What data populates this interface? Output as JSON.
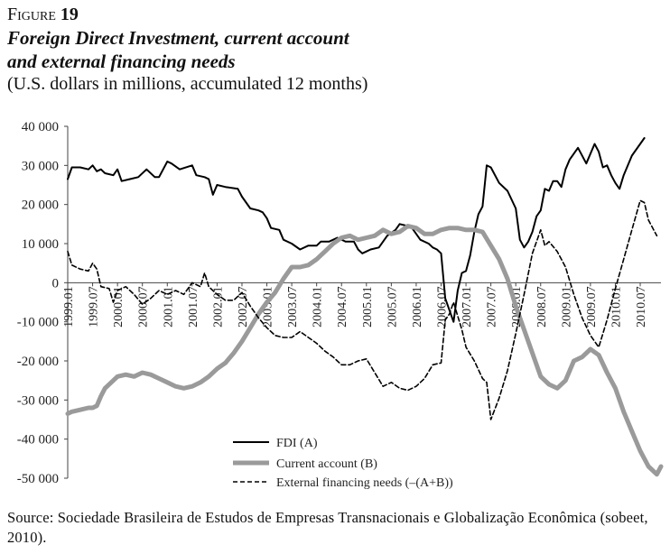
{
  "header": {
    "figure_word": "Figure",
    "figure_number": "19",
    "title_line1": "Foreign Direct Investment, current account",
    "title_line2": "and external financing needs",
    "subtitle": "(U.S. dollars in millions, accumulated 12 months)"
  },
  "source": {
    "text": "Source: Sociedade Brasileira de Estudos de Empresas Transnacionais e Globalização Econômica (sobeet, 2010)."
  },
  "chart_data": {
    "type": "line",
    "title": "Foreign Direct Investment, current account and external financing needs",
    "ylim": [
      -50000,
      40000
    ],
    "y_ticks": [
      40000,
      30000,
      20000,
      10000,
      0,
      -10000,
      -20000,
      -30000,
      -40000,
      -50000
    ],
    "y_tick_labels": [
      "40 000",
      "30 000",
      "20 000",
      "10 000",
      "0",
      "-10 000",
      "-20 000",
      "-30 000",
      "-40 000",
      "-50 000"
    ],
    "x_range": [
      "1999.01",
      "2010.12"
    ],
    "x_tick_labels": [
      "1999.01",
      "1999.07",
      "2000.01",
      "2000.07",
      "2001.01",
      "2001.07",
      "2002.01",
      "2002.07",
      "2003.01",
      "2003.07",
      "2004.01",
      "2004.07",
      "2005.01",
      "2005.07",
      "2006.01",
      "2006.07",
      "2007.01",
      "2007.07",
      "2008.01",
      "2008.07",
      "2009.01",
      "2009.07",
      "2010.01",
      "2010.07"
    ],
    "grid": false,
    "legend_position": "bottom-center",
    "series": [
      {
        "name": "FDI (A)",
        "color": "#000000",
        "style": "solid",
        "points": [
          [
            "1999.01",
            26500
          ],
          [
            "1999.02",
            29500
          ],
          [
            "1999.04",
            29500
          ],
          [
            "1999.06",
            29000
          ],
          [
            "1999.07",
            30000
          ],
          [
            "1999.08",
            28500
          ],
          [
            "1999.09",
            29000
          ],
          [
            "1999.10",
            28000
          ],
          [
            "1999.12",
            27500
          ],
          [
            "2000.01",
            29000
          ],
          [
            "2000.02",
            26000
          ],
          [
            "2000.04",
            26500
          ],
          [
            "2000.06",
            27000
          ],
          [
            "2000.08",
            29000
          ],
          [
            "2000.10",
            27000
          ],
          [
            "2000.11",
            27000
          ],
          [
            "2001.01",
            31000
          ],
          [
            "2001.02",
            30500
          ],
          [
            "2001.04",
            29000
          ],
          [
            "2001.07",
            30000
          ],
          [
            "2001.08",
            27500
          ],
          [
            "2001.10",
            27000
          ],
          [
            "2001.11",
            26500
          ],
          [
            "2001.12",
            22500
          ],
          [
            "2002.01",
            25000
          ],
          [
            "2002.03",
            24500
          ],
          [
            "2002.06",
            24000
          ],
          [
            "2002.07",
            22000
          ],
          [
            "2002.09",
            19000
          ],
          [
            "2002.11",
            18500
          ],
          [
            "2002.12",
            18000
          ],
          [
            "2003.01",
            16500
          ],
          [
            "2003.02",
            14000
          ],
          [
            "2003.04",
            13500
          ],
          [
            "2003.05",
            11000
          ],
          [
            "2003.07",
            10000
          ],
          [
            "2003.09",
            8500
          ],
          [
            "2003.11",
            9500
          ],
          [
            "2004.01",
            9500
          ],
          [
            "2004.02",
            10500
          ],
          [
            "2004.04",
            10500
          ],
          [
            "2004.06",
            11500
          ],
          [
            "2004.08",
            10500
          ],
          [
            "2004.10",
            10500
          ],
          [
            "2004.11",
            8500
          ],
          [
            "2004.12",
            7500
          ],
          [
            "2005.01",
            8000
          ],
          [
            "2005.02",
            8500
          ],
          [
            "2005.04",
            9000
          ],
          [
            "2005.06",
            12000
          ],
          [
            "2005.08",
            13500
          ],
          [
            "2005.09",
            15000
          ],
          [
            "2005.11",
            14500
          ],
          [
            "2005.12",
            14000
          ],
          [
            "2006.01",
            12500
          ],
          [
            "2006.02",
            11000
          ],
          [
            "2006.04",
            10000
          ],
          [
            "2006.05",
            9000
          ],
          [
            "2006.06",
            8500
          ],
          [
            "2006.07",
            7500
          ],
          [
            "2006.08",
            -4000
          ],
          [
            "2006.09",
            -7000
          ],
          [
            "2006.10",
            -10000
          ],
          [
            "2006.11",
            -2000
          ],
          [
            "2006.12",
            2500
          ],
          [
            "2007.01",
            3000
          ],
          [
            "2007.02",
            7000
          ],
          [
            "2007.03",
            13000
          ],
          [
            "2007.04",
            17500
          ],
          [
            "2007.05",
            19500
          ],
          [
            "2007.06",
            30000
          ],
          [
            "2007.07",
            29500
          ],
          [
            "2007.09",
            25500
          ],
          [
            "2007.11",
            23500
          ],
          [
            "2008.01",
            19000
          ],
          [
            "2008.02",
            11000
          ],
          [
            "2008.03",
            9000
          ],
          [
            "2008.04",
            10500
          ],
          [
            "2008.05",
            13000
          ],
          [
            "2008.06",
            17000
          ],
          [
            "2008.07",
            18500
          ],
          [
            "2008.08",
            24000
          ],
          [
            "2008.09",
            23500
          ],
          [
            "2008.10",
            26000
          ],
          [
            "2008.11",
            26000
          ],
          [
            "2008.12",
            24500
          ],
          [
            "2009.01",
            29000
          ],
          [
            "2009.02",
            31500
          ],
          [
            "2009.04",
            34500
          ],
          [
            "2009.06",
            30500
          ],
          [
            "2009.08",
            35500
          ],
          [
            "2009.09",
            33500
          ],
          [
            "2009.10",
            29500
          ],
          [
            "2009.11",
            30000
          ],
          [
            "2009.12",
            27500
          ],
          [
            "2010.01",
            25500
          ],
          [
            "2010.02",
            24000
          ],
          [
            "2010.03",
            27500
          ],
          [
            "2010.05",
            32500
          ],
          [
            "2010.07",
            35500
          ],
          [
            "2010.08",
            37000
          ]
        ]
      },
      {
        "name": "Current account (B)",
        "color": "#9a9a9a",
        "style": "solid",
        "points": [
          [
            "1999.01",
            -33500
          ],
          [
            "1999.02",
            -33000
          ],
          [
            "1999.04",
            -32500
          ],
          [
            "1999.06",
            -32000
          ],
          [
            "1999.07",
            -32000
          ],
          [
            "1999.08",
            -31500
          ],
          [
            "1999.09",
            -29000
          ],
          [
            "1999.10",
            -27000
          ],
          [
            "1999.12",
            -25000
          ],
          [
            "2000.01",
            -24000
          ],
          [
            "2000.03",
            -23500
          ],
          [
            "2000.05",
            -24000
          ],
          [
            "2000.07",
            -23000
          ],
          [
            "2000.09",
            -23500
          ],
          [
            "2000.11",
            -24500
          ],
          [
            "2001.01",
            -25500
          ],
          [
            "2001.03",
            -26500
          ],
          [
            "2001.05",
            -27000
          ],
          [
            "2001.07",
            -26500
          ],
          [
            "2001.09",
            -25500
          ],
          [
            "2001.11",
            -24000
          ],
          [
            "2002.01",
            -22000
          ],
          [
            "2002.03",
            -20500
          ],
          [
            "2002.05",
            -18000
          ],
          [
            "2002.07",
            -15000
          ],
          [
            "2002.09",
            -11500
          ],
          [
            "2002.11",
            -8000
          ],
          [
            "2003.01",
            -5000
          ],
          [
            "2003.03",
            -2500
          ],
          [
            "2003.05",
            1000
          ],
          [
            "2003.07",
            4000
          ],
          [
            "2003.09",
            4000
          ],
          [
            "2003.11",
            4500
          ],
          [
            "2004.01",
            6000
          ],
          [
            "2004.03",
            8000
          ],
          [
            "2004.05",
            10000
          ],
          [
            "2004.07",
            11500
          ],
          [
            "2004.09",
            12000
          ],
          [
            "2004.11",
            11000
          ],
          [
            "2005.01",
            11500
          ],
          [
            "2005.03",
            12000
          ],
          [
            "2005.05",
            13500
          ],
          [
            "2005.07",
            12500
          ],
          [
            "2005.09",
            13000
          ],
          [
            "2005.11",
            14500
          ],
          [
            "2006.01",
            14000
          ],
          [
            "2006.03",
            12500
          ],
          [
            "2006.05",
            12500
          ],
          [
            "2006.07",
            13500
          ],
          [
            "2006.09",
            14000
          ],
          [
            "2006.11",
            14000
          ],
          [
            "2007.01",
            13500
          ],
          [
            "2007.03",
            13500
          ],
          [
            "2007.05",
            13000
          ],
          [
            "2007.07",
            9500
          ],
          [
            "2007.09",
            6000
          ],
          [
            "2007.11",
            1000
          ],
          [
            "2008.01",
            -6000
          ],
          [
            "2008.03",
            -12000
          ],
          [
            "2008.05",
            -18000
          ],
          [
            "2008.07",
            -24000
          ],
          [
            "2008.09",
            -26000
          ],
          [
            "2008.11",
            -27000
          ],
          [
            "2009.01",
            -25000
          ],
          [
            "2009.03",
            -20000
          ],
          [
            "2009.05",
            -19000
          ],
          [
            "2009.07",
            -17000
          ],
          [
            "2009.09",
            -18500
          ],
          [
            "2009.11",
            -23000
          ],
          [
            "2010.01",
            -27000
          ],
          [
            "2010.03",
            -33000
          ],
          [
            "2010.05",
            -38000
          ],
          [
            "2010.07",
            -43000
          ],
          [
            "2010.09",
            -47000
          ],
          [
            "2010.11",
            -49000
          ],
          [
            "2010.12",
            -47000
          ]
        ]
      },
      {
        "name": "External financing needs (–(A+B))",
        "color": "#000000",
        "style": "dashed",
        "points": [
          [
            "1999.01",
            8000
          ],
          [
            "1999.02",
            4500
          ],
          [
            "1999.04",
            3500
          ],
          [
            "1999.06",
            3000
          ],
          [
            "1999.07",
            5000
          ],
          [
            "1999.08",
            3500
          ],
          [
            "1999.09",
            -1000
          ],
          [
            "1999.11",
            -1500
          ],
          [
            "1999.12",
            -5000
          ],
          [
            "2000.01",
            -2000
          ],
          [
            "2000.03",
            -1000
          ],
          [
            "2000.05",
            -3000
          ],
          [
            "2000.07",
            -5500
          ],
          [
            "2000.09",
            -4000
          ],
          [
            "2000.11",
            -2000
          ],
          [
            "2001.01",
            -3000
          ],
          [
            "2001.03",
            -2000
          ],
          [
            "2001.05",
            -3000
          ],
          [
            "2001.07",
            0
          ],
          [
            "2001.09",
            -1000
          ],
          [
            "2001.10",
            2500
          ],
          [
            "2001.11",
            -1000
          ],
          [
            "2002.01",
            -3000
          ],
          [
            "2002.03",
            -4500
          ],
          [
            "2002.05",
            -4500
          ],
          [
            "2002.07",
            -2500
          ],
          [
            "2002.09",
            -6000
          ],
          [
            "2002.11",
            -9000
          ],
          [
            "2003.01",
            -11500
          ],
          [
            "2003.03",
            -13500
          ],
          [
            "2003.05",
            -14000
          ],
          [
            "2003.07",
            -14000
          ],
          [
            "2003.09",
            -12500
          ],
          [
            "2003.11",
            -14000
          ],
          [
            "2004.01",
            -15500
          ],
          [
            "2004.03",
            -17500
          ],
          [
            "2004.05",
            -19000
          ],
          [
            "2004.07",
            -21000
          ],
          [
            "2004.09",
            -21000
          ],
          [
            "2004.11",
            -20000
          ],
          [
            "2005.01",
            -19500
          ],
          [
            "2005.03",
            -23000
          ],
          [
            "2005.05",
            -26500
          ],
          [
            "2005.07",
            -25500
          ],
          [
            "2005.09",
            -27000
          ],
          [
            "2005.11",
            -27500
          ],
          [
            "2006.01",
            -26500
          ],
          [
            "2006.03",
            -24500
          ],
          [
            "2006.05",
            -21000
          ],
          [
            "2006.07",
            -20500
          ],
          [
            "2006.08",
            -9500
          ],
          [
            "2006.09",
            -8000
          ],
          [
            "2006.10",
            -5000
          ],
          [
            "2006.11",
            -8500
          ],
          [
            "2006.12",
            -12000
          ],
          [
            "2007.01",
            -16500
          ],
          [
            "2007.03",
            -20000
          ],
          [
            "2007.05",
            -24500
          ],
          [
            "2007.06",
            -25500
          ],
          [
            "2007.07",
            -35000
          ],
          [
            "2007.09",
            -29500
          ],
          [
            "2007.11",
            -22500
          ],
          [
            "2008.01",
            -13000
          ],
          [
            "2008.03",
            -3000
          ],
          [
            "2008.05",
            7500
          ],
          [
            "2008.07",
            13500
          ],
          [
            "2008.08",
            9500
          ],
          [
            "2008.09",
            10500
          ],
          [
            "2008.11",
            8000
          ],
          [
            "2009.01",
            4000
          ],
          [
            "2009.03",
            -3000
          ],
          [
            "2009.05",
            -9000
          ],
          [
            "2009.07",
            -13500
          ],
          [
            "2009.09",
            -16500
          ],
          [
            "2009.11",
            -9500
          ],
          [
            "2010.01",
            -1500
          ],
          [
            "2010.03",
            6000
          ],
          [
            "2010.05",
            13500
          ],
          [
            "2010.07",
            21000
          ],
          [
            "2010.08",
            20500
          ],
          [
            "2010.09",
            16000
          ],
          [
            "2010.11",
            12000
          ]
        ]
      }
    ]
  }
}
